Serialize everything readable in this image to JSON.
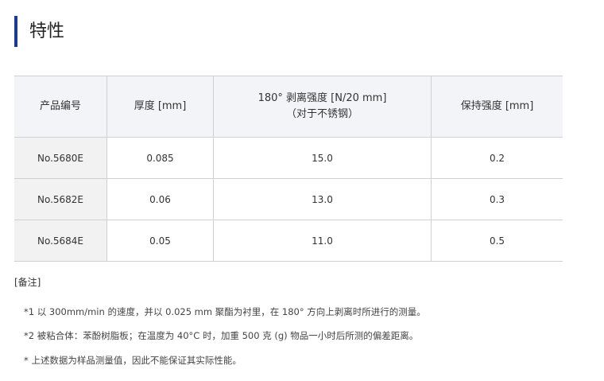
{
  "title": "特性",
  "table": {
    "headers": [
      "产品编号",
      "厚度 [mm]",
      "180° 剥离强度 [N/20 mm]",
      "（对于不锈钢）",
      "保持强度 [mm]"
    ],
    "rows": [
      [
        "No.5680E",
        "0.085",
        "15.0",
        "0.2"
      ],
      [
        "No.5682E",
        "0.06",
        "13.0",
        "0.3"
      ],
      [
        "No.5684E",
        "0.05",
        "11.0",
        "0.5"
      ]
    ]
  },
  "notes": {
    "heading": "[备注]",
    "items": [
      "*1 以 300mm/min 的速度，并以 0.025 mm 聚酯为衬里，在 180° 方向上剥离时所进行的测量。",
      "*2 被粘合体：苯酚树脂板；在温度为 40°C 时，加重 500 克 (g) 物品一小时后所测的偏差距离。",
      "* 上述数据为样品测量值，因此不能保证其实际性能。"
    ]
  },
  "colors": {
    "accent": "#1e3a8a"
  }
}
